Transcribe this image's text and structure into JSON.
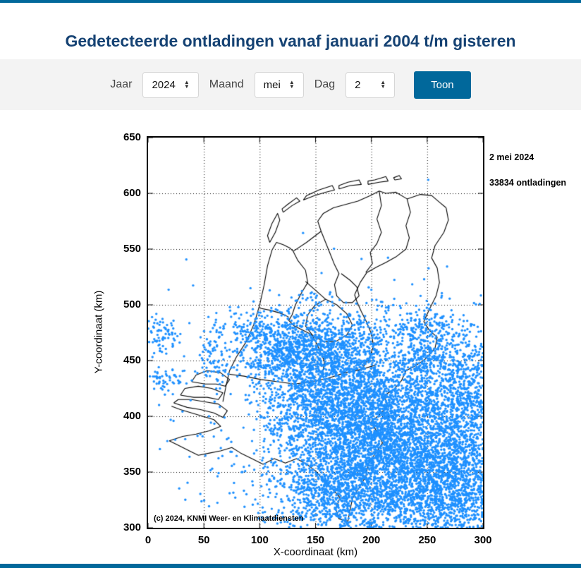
{
  "page": {
    "title": "Gedetecteerde ontladingen vanaf januari 2004 t/m gisteren",
    "accent_color": "#01689b",
    "bar_color": "#01689b"
  },
  "form": {
    "year": {
      "label": "Jaar",
      "value": "2024"
    },
    "month": {
      "label": "Maand",
      "value": "mei"
    },
    "day": {
      "label": "Dag",
      "value": "2"
    },
    "submit_label": "Toon"
  },
  "chart_data": {
    "type": "scatter",
    "title": "",
    "xlabel": "X-coordinaat (km)",
    "ylabel": "Y-coordinaat (km)",
    "xlim": [
      0,
      300
    ],
    "ylim": [
      300,
      650
    ],
    "xticks": [
      0,
      50,
      100,
      150,
      200,
      250,
      300
    ],
    "yticks": [
      650,
      600,
      550,
      500,
      450,
      400,
      350,
      300
    ],
    "grid": "dotted",
    "legend": "none",
    "annotations": {
      "date": "2 mei 2024",
      "count": "33834 ontladingen"
    },
    "copyright": "(c) 2024, KNMI Weer- en Klimaatdiensten",
    "point_color": "#1E90FF",
    "point_radius_px": 1.7,
    "total_points": 33834,
    "clusters": [
      {
        "cx": 235,
        "cy": 370,
        "sx": 42,
        "sy": 40,
        "n": 3000
      },
      {
        "cx": 185,
        "cy": 405,
        "sx": 36,
        "sy": 34,
        "n": 1800
      },
      {
        "cx": 172,
        "cy": 332,
        "sx": 32,
        "sy": 22,
        "n": 1000
      },
      {
        "cx": 268,
        "cy": 332,
        "sx": 26,
        "sy": 22,
        "n": 900
      },
      {
        "cx": 283,
        "cy": 428,
        "sx": 18,
        "sy": 32,
        "n": 600
      },
      {
        "cx": 150,
        "cy": 420,
        "sx": 24,
        "sy": 28,
        "n": 700
      },
      {
        "cx": 165,
        "cy": 465,
        "sx": 26,
        "sy": 14,
        "n": 500
      },
      {
        "cx": 120,
        "cy": 458,
        "sx": 18,
        "sy": 13,
        "n": 400
      },
      {
        "cx": 245,
        "cy": 478,
        "sx": 13,
        "sy": 9,
        "n": 160
      },
      {
        "cx": 190,
        "cy": 398,
        "sx": 78,
        "sy": 62,
        "n": 900
      },
      {
        "cx": 100,
        "cy": 478,
        "sx": 16,
        "sy": 10,
        "n": 160
      },
      {
        "cx": 60,
        "cy": 458,
        "sx": 7,
        "sy": 20,
        "n": 90
      },
      {
        "cx": 12,
        "cy": 472,
        "sx": 10,
        "sy": 8,
        "n": 80
      },
      {
        "cx": 15,
        "cy": 433,
        "sx": 11,
        "sy": 6,
        "n": 60
      },
      {
        "cx": 150,
        "cy": 503,
        "sx": 9,
        "sy": 5,
        "n": 22
      },
      {
        "cx": 214,
        "cy": 500,
        "sx": 5,
        "sy": 4,
        "n": 12
      },
      {
        "cx": 247,
        "cy": 452,
        "sx": 10,
        "sy": 8,
        "n": 120
      }
    ],
    "map_outlines": [
      [
        [
          67,
          413
        ],
        [
          70,
          428
        ],
        [
          73,
          441
        ],
        [
          79,
          453
        ],
        [
          88,
          467
        ],
        [
          95,
          483
        ],
        [
          100,
          500
        ],
        [
          104,
          518
        ],
        [
          107,
          535
        ],
        [
          111,
          549
        ],
        [
          115,
          556
        ]
      ],
      [
        [
          115,
          556
        ],
        [
          121,
          554
        ],
        [
          127,
          551
        ],
        [
          130,
          548
        ]
      ],
      [
        [
          130,
          548
        ],
        [
          142,
          556
        ],
        [
          155,
          566
        ]
      ],
      [
        [
          155,
          566
        ],
        [
          152,
          575
        ],
        [
          157,
          582
        ],
        [
          166,
          587
        ],
        [
          177,
          590
        ],
        [
          188,
          593
        ],
        [
          199,
          598
        ],
        [
          207,
          602
        ],
        [
          213,
          600
        ],
        [
          222,
          601
        ],
        [
          232,
          595
        ],
        [
          244,
          599
        ],
        [
          254,
          598
        ],
        [
          261,
          592
        ],
        [
          267,
          587
        ]
      ],
      [
        [
          267,
          587
        ],
        [
          269,
          576
        ],
        [
          265,
          565
        ],
        [
          257,
          553
        ],
        [
          254,
          542
        ],
        [
          259,
          533
        ],
        [
          261,
          520
        ],
        [
          258,
          508
        ],
        [
          252,
          496
        ],
        [
          247,
          485
        ],
        [
          252,
          477
        ],
        [
          259,
          471
        ],
        [
          257,
          461
        ],
        [
          248,
          451
        ],
        [
          239,
          445
        ],
        [
          231,
          441
        ],
        [
          227,
          432
        ],
        [
          220,
          424
        ],
        [
          212,
          419
        ],
        [
          214,
          409
        ],
        [
          207,
          401
        ],
        [
          200,
          395
        ],
        [
          205,
          386
        ],
        [
          210,
          376
        ],
        [
          203,
          366
        ],
        [
          197,
          356
        ],
        [
          195,
          346
        ],
        [
          189,
          336
        ],
        [
          183,
          326
        ],
        [
          181,
          316
        ],
        [
          179,
          306
        ]
      ],
      [
        [
          179,
          306
        ],
        [
          171,
          308
        ],
        [
          168,
          317
        ],
        [
          172,
          327
        ],
        [
          165,
          335
        ],
        [
          157,
          343
        ],
        [
          150,
          351
        ],
        [
          142,
          357
        ],
        [
          133,
          362
        ],
        [
          123,
          358
        ],
        [
          113,
          362
        ],
        [
          103,
          357
        ],
        [
          93,
          362
        ],
        [
          83,
          367
        ],
        [
          75,
          372
        ],
        [
          65,
          369
        ],
        [
          55,
          367
        ],
        [
          45,
          365
        ],
        [
          37,
          369
        ],
        [
          27,
          374
        ],
        [
          19,
          378
        ]
      ],
      [
        [
          19,
          378
        ],
        [
          31,
          382
        ],
        [
          43,
          384
        ],
        [
          55,
          387
        ],
        [
          65,
          391
        ],
        [
          59,
          397
        ],
        [
          49,
          400
        ],
        [
          39,
          403
        ],
        [
          29,
          406
        ],
        [
          21,
          409
        ]
      ],
      [
        [
          23,
          412
        ],
        [
          35,
          408
        ],
        [
          47,
          406
        ],
        [
          59,
          403
        ],
        [
          67,
          399
        ],
        [
          71,
          405
        ],
        [
          63,
          411
        ],
        [
          51,
          413
        ],
        [
          39,
          415
        ],
        [
          27,
          415
        ],
        [
          23,
          412
        ]
      ],
      [
        [
          29,
          419
        ],
        [
          41,
          417
        ],
        [
          53,
          417
        ],
        [
          63,
          415
        ],
        [
          67,
          421
        ],
        [
          57,
          425
        ],
        [
          45,
          427
        ],
        [
          33,
          425
        ],
        [
          29,
          419
        ]
      ],
      [
        [
          39,
          431
        ],
        [
          51,
          429
        ],
        [
          61,
          429
        ],
        [
          69,
          427
        ],
        [
          73,
          433
        ],
        [
          65,
          439
        ],
        [
          53,
          441
        ],
        [
          43,
          437
        ],
        [
          39,
          431
        ]
      ],
      [
        [
          109,
          556
        ],
        [
          114,
          565
        ],
        [
          118,
          576
        ],
        [
          116,
          582
        ],
        [
          111,
          573
        ],
        [
          107,
          562
        ],
        [
          109,
          556
        ]
      ],
      [
        [
          121,
          583
        ],
        [
          129,
          589
        ],
        [
          136,
          593
        ],
        [
          133,
          596
        ],
        [
          125,
          590
        ],
        [
          120,
          586
        ],
        [
          121,
          583
        ]
      ],
      [
        [
          139,
          594
        ],
        [
          149,
          598
        ],
        [
          159,
          601
        ],
        [
          167,
          603
        ],
        [
          165,
          607
        ],
        [
          153,
          603
        ],
        [
          142,
          598
        ],
        [
          139,
          594
        ]
      ],
      [
        [
          171,
          604
        ],
        [
          181,
          607
        ],
        [
          191,
          608
        ],
        [
          189,
          612
        ],
        [
          179,
          610
        ],
        [
          171,
          607
        ],
        [
          171,
          604
        ]
      ],
      [
        [
          197,
          608
        ],
        [
          207,
          610
        ],
        [
          215,
          611
        ],
        [
          213,
          615
        ],
        [
          203,
          612
        ],
        [
          197,
          611
        ],
        [
          197,
          608
        ]
      ],
      [
        [
          221,
          612
        ],
        [
          227,
          613
        ],
        [
          225,
          616
        ],
        [
          220,
          614
        ],
        [
          221,
          612
        ]
      ],
      [
        [
          130,
          548
        ],
        [
          134,
          540
        ],
        [
          141,
          531
        ],
        [
          143,
          520
        ],
        [
          137,
          510
        ],
        [
          132,
          500
        ],
        [
          129,
          491
        ],
        [
          126,
          486
        ],
        [
          131,
          481
        ],
        [
          139,
          477
        ],
        [
          147,
          473
        ]
      ],
      [
        [
          159,
          505
        ],
        [
          169,
          500
        ],
        [
          178,
          492
        ],
        [
          183,
          482
        ],
        [
          178,
          473
        ],
        [
          168,
          467
        ],
        [
          157,
          467
        ],
        [
          147,
          473
        ],
        [
          141,
          481
        ],
        [
          143,
          491
        ],
        [
          149,
          499
        ],
        [
          159,
          505
        ]
      ],
      [
        [
          141,
          521
        ],
        [
          150,
          513
        ],
        [
          159,
          505
        ]
      ],
      [
        [
          155,
          566
        ],
        [
          159,
          556
        ],
        [
          163,
          546
        ],
        [
          167,
          536
        ],
        [
          171,
          528
        ],
        [
          167,
          518
        ],
        [
          169,
          508
        ],
        [
          175,
          502
        ],
        [
          183,
          502
        ],
        [
          189,
          508
        ],
        [
          187,
          516
        ],
        [
          181,
          522
        ],
        [
          173,
          528
        ]
      ],
      [
        [
          71,
          438
        ],
        [
          86,
          436
        ],
        [
          101,
          433
        ],
        [
          116,
          431
        ],
        [
          131,
          429
        ],
        [
          146,
          431
        ],
        [
          161,
          434
        ],
        [
          176,
          439
        ],
        [
          191,
          442
        ],
        [
          204,
          446
        ]
      ],
      [
        [
          191,
          442
        ],
        [
          198,
          452
        ],
        [
          202,
          463
        ],
        [
          200,
          474
        ],
        [
          196,
          484
        ],
        [
          191,
          494
        ],
        [
          187,
          503
        ],
        [
          185,
          509
        ]
      ],
      [
        [
          147,
          473
        ],
        [
          153,
          461
        ],
        [
          158,
          449
        ],
        [
          156,
          437
        ]
      ],
      [
        [
          207,
          602
        ],
        [
          209,
          589
        ],
        [
          205,
          577
        ],
        [
          209,
          565
        ],
        [
          205,
          555
        ],
        [
          199,
          547
        ],
        [
          201,
          537
        ],
        [
          195,
          529
        ]
      ],
      [
        [
          232,
          595
        ],
        [
          235,
          583
        ],
        [
          231,
          571
        ],
        [
          234,
          560
        ],
        [
          231,
          550
        ]
      ],
      [
        [
          231,
          550
        ],
        [
          222,
          543
        ],
        [
          213,
          538
        ],
        [
          205,
          534
        ],
        [
          196,
          529
        ]
      ],
      [
        [
          196,
          529
        ],
        [
          190,
          520
        ],
        [
          185,
          509
        ]
      ],
      [
        [
          100,
          497
        ],
        [
          110,
          495
        ],
        [
          120,
          492
        ],
        [
          126,
          489
        ]
      ]
    ]
  }
}
